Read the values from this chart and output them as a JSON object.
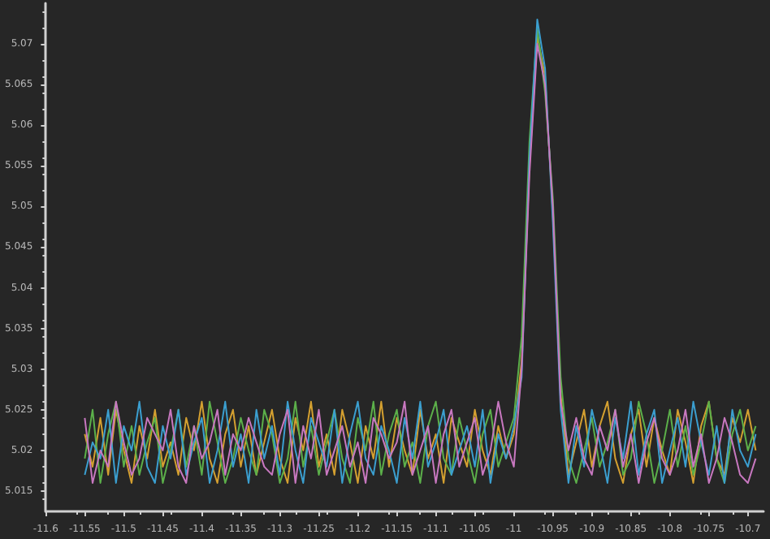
{
  "chart_data": {
    "type": "line",
    "x": [
      -11.55,
      -11.54,
      -11.53,
      -11.52,
      -11.51,
      -11.5,
      -11.49,
      -11.48,
      -11.47,
      -11.46,
      -11.45,
      -11.44,
      -11.43,
      -11.42,
      -11.41,
      -11.4,
      -11.39,
      -11.38,
      -11.37,
      -11.36,
      -11.35,
      -11.34,
      -11.33,
      -11.32,
      -11.31,
      -11.3,
      -11.29,
      -11.28,
      -11.27,
      -11.26,
      -11.25,
      -11.24,
      -11.23,
      -11.22,
      -11.21,
      -11.2,
      -11.19,
      -11.18,
      -11.17,
      -11.16,
      -11.15,
      -11.14,
      -11.13,
      -11.12,
      -11.11,
      -11.1,
      -11.09,
      -11.08,
      -11.07,
      -11.06,
      -11.05,
      -11.04,
      -11.03,
      -11.02,
      -11.01,
      -11.0,
      -10.99,
      -10.98,
      -10.97,
      -10.96,
      -10.95,
      -10.94,
      -10.93,
      -10.92,
      -10.91,
      -10.9,
      -10.89,
      -10.88,
      -10.87,
      -10.86,
      -10.85,
      -10.84,
      -10.83,
      -10.82,
      -10.81,
      -10.8,
      -10.79,
      -10.78,
      -10.77,
      -10.76,
      -10.75,
      -10.74,
      -10.73,
      -10.72,
      -10.71,
      -10.7,
      -10.69
    ],
    "series": [
      {
        "color": "#d4a030",
        "values": [
          5.022,
          5.018,
          5.024,
          5.017,
          5.025,
          5.02,
          5.016,
          5.023,
          5.019,
          5.025,
          5.018,
          5.021,
          5.017,
          5.024,
          5.02,
          5.026,
          5.019,
          5.016,
          5.022,
          5.025,
          5.018,
          5.023,
          5.017,
          5.021,
          5.025,
          5.019,
          5.016,
          5.024,
          5.02,
          5.026,
          5.018,
          5.022,
          5.017,
          5.025,
          5.021,
          5.016,
          5.023,
          5.019,
          5.026,
          5.018,
          5.024,
          5.02,
          5.017,
          5.025,
          5.019,
          5.022,
          5.016,
          5.024,
          5.021,
          5.018,
          5.025,
          5.02,
          5.017,
          5.023,
          5.019,
          5.022,
          5.031,
          5.055,
          5.071,
          5.066,
          5.049,
          5.027,
          5.017,
          5.021,
          5.025,
          5.018,
          5.023,
          5.026,
          5.019,
          5.016,
          5.022,
          5.025,
          5.018,
          5.024,
          5.02,
          5.017,
          5.025,
          5.021,
          5.016,
          5.023,
          5.026,
          5.019,
          5.017,
          5.024,
          5.021,
          5.025,
          5.02
        ]
      },
      {
        "color": "#5cb04a",
        "values": [
          5.019,
          5.025,
          5.016,
          5.022,
          5.026,
          5.018,
          5.023,
          5.017,
          5.021,
          5.024,
          5.016,
          5.02,
          5.025,
          5.018,
          5.023,
          5.017,
          5.026,
          5.021,
          5.016,
          5.019,
          5.024,
          5.02,
          5.017,
          5.025,
          5.022,
          5.016,
          5.019,
          5.026,
          5.018,
          5.023,
          5.017,
          5.021,
          5.025,
          5.019,
          5.016,
          5.024,
          5.02,
          5.026,
          5.017,
          5.022,
          5.025,
          5.018,
          5.021,
          5.016,
          5.023,
          5.026,
          5.019,
          5.017,
          5.024,
          5.02,
          5.016,
          5.022,
          5.025,
          5.018,
          5.021,
          5.024,
          5.034,
          5.058,
          5.072,
          5.064,
          5.051,
          5.029,
          5.019,
          5.016,
          5.02,
          5.024,
          5.018,
          5.021,
          5.025,
          5.017,
          5.019,
          5.026,
          5.022,
          5.016,
          5.02,
          5.025,
          5.018,
          5.023,
          5.017,
          5.021,
          5.026,
          5.019,
          5.016,
          5.022,
          5.025,
          5.02,
          5.023
        ]
      },
      {
        "color": "#3b9fd0",
        "values": [
          5.017,
          5.021,
          5.019,
          5.025,
          5.016,
          5.023,
          5.02,
          5.026,
          5.018,
          5.016,
          5.023,
          5.019,
          5.025,
          5.017,
          5.021,
          5.024,
          5.016,
          5.02,
          5.026,
          5.018,
          5.022,
          5.016,
          5.025,
          5.019,
          5.023,
          5.017,
          5.026,
          5.02,
          5.016,
          5.024,
          5.021,
          5.018,
          5.025,
          5.016,
          5.022,
          5.026,
          5.019,
          5.017,
          5.023,
          5.02,
          5.016,
          5.024,
          5.019,
          5.026,
          5.018,
          5.021,
          5.025,
          5.017,
          5.02,
          5.023,
          5.018,
          5.025,
          5.016,
          5.022,
          5.019,
          5.023,
          5.029,
          5.056,
          5.073,
          5.067,
          5.048,
          5.025,
          5.016,
          5.023,
          5.018,
          5.025,
          5.021,
          5.016,
          5.024,
          5.019,
          5.026,
          5.017,
          5.022,
          5.025,
          5.016,
          5.02,
          5.024,
          5.018,
          5.026,
          5.021,
          5.017,
          5.023,
          5.016,
          5.025,
          5.02,
          5.018,
          5.022
        ]
      },
      {
        "color": "#c878c0",
        "values": [
          5.024,
          5.016,
          5.02,
          5.018,
          5.026,
          5.021,
          5.017,
          5.019,
          5.024,
          5.022,
          5.02,
          5.025,
          5.018,
          5.016,
          5.023,
          5.019,
          5.021,
          5.025,
          5.017,
          5.022,
          5.02,
          5.024,
          5.021,
          5.018,
          5.017,
          5.022,
          5.025,
          5.016,
          5.023,
          5.019,
          5.025,
          5.017,
          5.02,
          5.023,
          5.018,
          5.021,
          5.016,
          5.024,
          5.022,
          5.019,
          5.021,
          5.026,
          5.017,
          5.02,
          5.023,
          5.016,
          5.022,
          5.025,
          5.018,
          5.021,
          5.024,
          5.017,
          5.02,
          5.026,
          5.021,
          5.018,
          5.03,
          5.054,
          5.07,
          5.065,
          5.05,
          5.026,
          5.02,
          5.024,
          5.019,
          5.017,
          5.023,
          5.02,
          5.025,
          5.018,
          5.022,
          5.016,
          5.021,
          5.024,
          5.019,
          5.017,
          5.02,
          5.025,
          5.018,
          5.022,
          5.016,
          5.019,
          5.024,
          5.021,
          5.017,
          5.016,
          5.019
        ]
      }
    ],
    "xlim": [
      -11.6,
      -10.68
    ],
    "ylim": [
      5.0125,
      5.075
    ],
    "xticks": [
      -11.6,
      -11.55,
      -11.5,
      -11.45,
      -11.4,
      -11.35,
      -11.3,
      -11.25,
      -11.2,
      -11.15,
      -11.1,
      -11.05,
      -11,
      -10.95,
      -10.9,
      -10.85,
      -10.8,
      -10.75,
      -10.7
    ],
    "yticks": [
      5.015,
      5.02,
      5.025,
      5.03,
      5.035,
      5.04,
      5.045,
      5.05,
      5.055,
      5.06,
      5.065,
      5.07
    ],
    "grid": false,
    "marker": "none",
    "line_style": "solid"
  }
}
